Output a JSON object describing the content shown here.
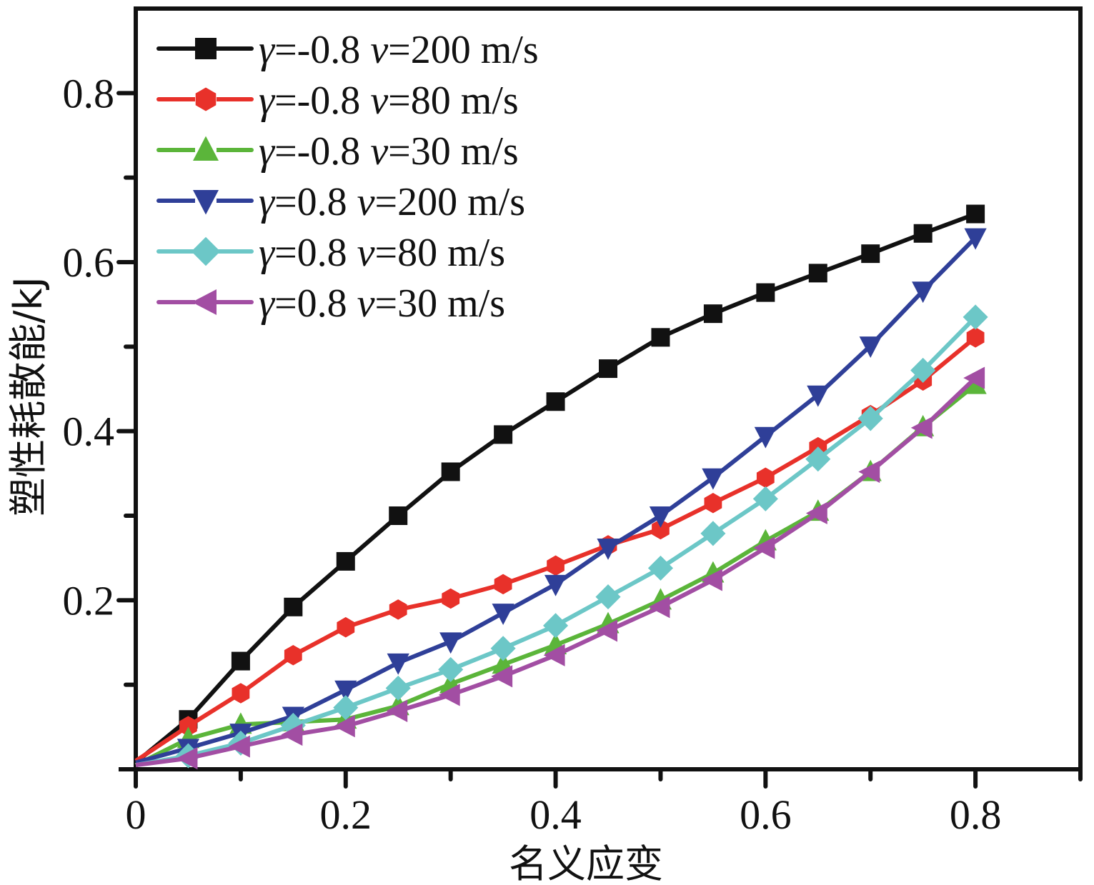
{
  "chart_data": {
    "type": "line",
    "title": "",
    "xlabel": "名义应变",
    "ylabel": "塑性耗散能/kJ",
    "xlim": [
      0,
      0.9
    ],
    "ylim": [
      0,
      0.9
    ],
    "x_ticks": [
      0,
      0.2,
      0.4,
      0.6,
      0.8
    ],
    "x_tick_labels": [
      "0",
      "0.2",
      "0.4",
      "0.6",
      "0.8"
    ],
    "x_minor_ticks": [
      0.1,
      0.3,
      0.5,
      0.7,
      0.9
    ],
    "y_ticks": [
      0.2,
      0.4,
      0.6,
      0.8
    ],
    "y_tick_labels": [
      "0.2",
      "0.4",
      "0.6",
      "0.8"
    ],
    "y_minor_ticks": [
      0.1,
      0.3,
      0.5,
      0.7
    ],
    "grid": false,
    "legend_position": "top-left",
    "x": [
      0,
      0.05,
      0.1,
      0.15,
      0.2,
      0.25,
      0.3,
      0.35,
      0.4,
      0.45,
      0.5,
      0.55,
      0.6,
      0.65,
      0.7,
      0.75,
      0.8
    ],
    "series": [
      {
        "name": "γ=-0.8  v=200 m/s",
        "gamma": "γ=-0.8",
        "velocity": "v=200 m/s",
        "color": "#111111",
        "marker": "square",
        "values": [
          0.008,
          0.059,
          0.128,
          0.192,
          0.246,
          0.3,
          0.352,
          0.396,
          0.435,
          0.474,
          0.511,
          0.539,
          0.564,
          0.587,
          0.61,
          0.634,
          0.657
        ]
      },
      {
        "name": "γ=-0.8  v=80 m/s",
        "gamma": "γ=-0.8",
        "velocity": "v=80 m/s",
        "color": "#e8312a",
        "marker": "hexagon",
        "values": [
          0.01,
          0.051,
          0.09,
          0.135,
          0.168,
          0.189,
          0.202,
          0.219,
          0.241,
          0.265,
          0.284,
          0.315,
          0.345,
          0.381,
          0.419,
          0.46,
          0.511
        ]
      },
      {
        "name": "γ=-0.8  v=30 m/s",
        "gamma": "γ=-0.8",
        "velocity": "v=30 m/s",
        "color": "#5bb53a",
        "marker": "triangle-up",
        "values": [
          0.005,
          0.036,
          0.053,
          0.056,
          0.059,
          0.075,
          0.101,
          0.124,
          0.147,
          0.172,
          0.2,
          0.232,
          0.27,
          0.305,
          0.352,
          0.405,
          0.455
        ]
      },
      {
        "name": "γ=0.8  v=200 m/s",
        "gamma": "γ=0.8",
        "velocity": "v=200 m/s",
        "color": "#2f3f98",
        "marker": "triangle-down",
        "values": [
          0.008,
          0.025,
          0.043,
          0.063,
          0.094,
          0.126,
          0.151,
          0.185,
          0.219,
          0.262,
          0.3,
          0.345,
          0.394,
          0.443,
          0.501,
          0.566,
          0.629
        ]
      },
      {
        "name": "γ=0.8  v=80 m/s",
        "gamma": "γ=0.8",
        "velocity": "v=80 m/s",
        "color": "#6cc7c7",
        "marker": "diamond",
        "values": [
          0.005,
          0.016,
          0.031,
          0.052,
          0.073,
          0.096,
          0.118,
          0.143,
          0.17,
          0.204,
          0.238,
          0.279,
          0.32,
          0.367,
          0.415,
          0.472,
          0.535
        ]
      },
      {
        "name": "γ=0.8  v=30 m/s",
        "gamma": "γ=0.8",
        "velocity": "v=30 m/s",
        "color": "#a24ea3",
        "marker": "triangle-left",
        "values": [
          0.005,
          0.013,
          0.027,
          0.041,
          0.051,
          0.069,
          0.088,
          0.11,
          0.135,
          0.164,
          0.192,
          0.224,
          0.262,
          0.303,
          0.352,
          0.404,
          0.463
        ]
      }
    ]
  }
}
